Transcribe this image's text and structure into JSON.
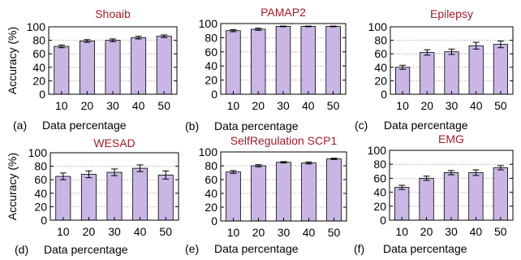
{
  "figure": {
    "y_axis_label": "Accuracy (%)",
    "x_axis_label": "Data percentage"
  },
  "colors": {
    "bar_fill": "#c9b6e4",
    "bar_stroke": "#000000",
    "title": "#a01c28",
    "grid": "#9a9a9a"
  },
  "chart_data": [
    {
      "type": "bar",
      "panel": "(a)",
      "title": "Shoaib",
      "categories": [
        "10",
        "20",
        "30",
        "40",
        "50"
      ],
      "values": [
        71,
        79,
        80,
        84,
        86
      ],
      "errors": [
        2,
        2,
        2,
        2,
        2
      ],
      "xlabel": "Data percentage",
      "ylabel": "Accuracy (%)",
      "ylim": [
        0,
        100
      ],
      "yticks": [
        0,
        20,
        40,
        60,
        80,
        100
      ],
      "grid": true
    },
    {
      "type": "bar",
      "panel": "(b)",
      "title": "PAMAP2",
      "categories": [
        "10",
        "20",
        "30",
        "40",
        "50"
      ],
      "values": [
        90,
        92,
        96,
        96,
        96
      ],
      "errors": [
        1.5,
        1.5,
        0.5,
        0.5,
        0.5
      ],
      "xlabel": "Data percentage",
      "ylabel": "",
      "ylim": [
        0,
        100
      ],
      "yticks": [
        0,
        20,
        40,
        60,
        80,
        100
      ],
      "grid": true
    },
    {
      "type": "bar",
      "panel": "(c)",
      "title": "Epilepsy",
      "categories": [
        "10",
        "20",
        "30",
        "40",
        "50"
      ],
      "values": [
        40,
        62,
        63,
        72,
        74
      ],
      "errors": [
        3,
        4,
        4,
        5,
        5
      ],
      "xlabel": "Data percentage",
      "ylabel": "",
      "ylim": [
        0,
        100
      ],
      "yticks": [
        0,
        20,
        40,
        60,
        80,
        100
      ],
      "grid": true
    },
    {
      "type": "bar",
      "panel": "(d)",
      "title": "WESAD",
      "categories": [
        "10",
        "20",
        "30",
        "40",
        "50"
      ],
      "values": [
        65,
        68,
        71,
        77,
        67
      ],
      "errors": [
        5,
        5,
        5,
        5,
        6
      ],
      "xlabel": "Data percentage",
      "ylabel": "Accuracy (%)",
      "ylim": [
        0,
        100
      ],
      "yticks": [
        0,
        20,
        40,
        60,
        80,
        100
      ],
      "grid": true
    },
    {
      "type": "bar",
      "panel": "(e)",
      "title": "SelfRegulation SCP1",
      "categories": [
        "10",
        "20",
        "30",
        "40",
        "50"
      ],
      "values": [
        71,
        80,
        85,
        84,
        90
      ],
      "errors": [
        2,
        1.5,
        1,
        1.5,
        1
      ],
      "xlabel": "Data percentage",
      "ylabel": "",
      "ylim": [
        0,
        100
      ],
      "yticks": [
        0,
        20,
        40,
        60,
        80,
        100
      ],
      "grid": true
    },
    {
      "type": "bar",
      "panel": "(f)",
      "title": "EMG",
      "categories": [
        "10",
        "20",
        "30",
        "40",
        "50"
      ],
      "values": [
        47,
        60,
        68,
        68,
        75
      ],
      "errors": [
        3,
        3,
        3,
        4,
        3
      ],
      "xlabel": "Data percentage",
      "ylabel": "",
      "ylim": [
        0,
        100
      ],
      "yticks": [
        0,
        20,
        40,
        60,
        80,
        100
      ],
      "grid": true
    }
  ]
}
